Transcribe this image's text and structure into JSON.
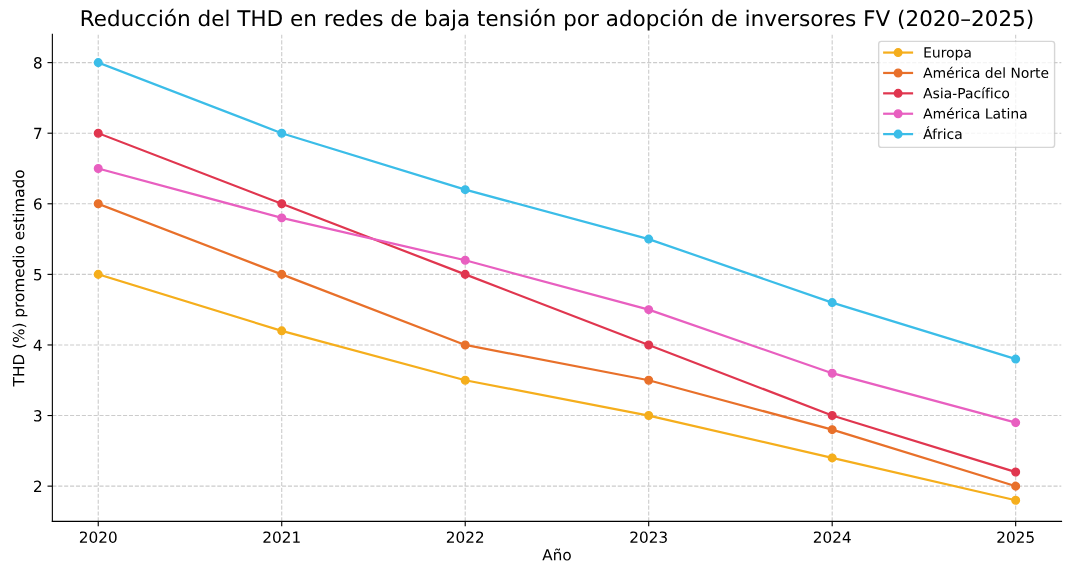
{
  "chart_data": {
    "type": "line",
    "title": "Reducción del THD en redes de baja tensión por adopción de inversores FV (2020–2025)",
    "xlabel": "Año",
    "ylabel": "THD (%) promedio estimado",
    "x": [
      2020,
      2021,
      2022,
      2023,
      2024,
      2025
    ],
    "series": [
      {
        "name": "Europa",
        "color": "#f5ae1c",
        "values": [
          5.0,
          4.2,
          3.5,
          3.0,
          2.4,
          1.8
        ]
      },
      {
        "name": "América del Norte",
        "color": "#e8702a",
        "values": [
          6.0,
          5.0,
          4.0,
          3.5,
          2.8,
          2.0
        ]
      },
      {
        "name": "Asia-Pacífico",
        "color": "#e0364f",
        "values": [
          7.0,
          6.0,
          5.0,
          4.0,
          3.0,
          2.2
        ]
      },
      {
        "name": "América Latina",
        "color": "#e85fc0",
        "values": [
          6.5,
          5.8,
          5.2,
          4.5,
          3.6,
          2.9
        ]
      },
      {
        "name": "África",
        "color": "#3bbde8",
        "values": [
          8.0,
          7.0,
          6.2,
          5.5,
          4.6,
          3.8
        ]
      }
    ],
    "xlim": [
      2019.75,
      2025.25
    ],
    "xticks": [
      2020,
      2021,
      2022,
      2023,
      2024,
      2025
    ],
    "ylim": [
      1.5,
      8.4
    ],
    "yticks": [
      2,
      3,
      4,
      5,
      6,
      7,
      8
    ],
    "grid": true,
    "legend": "top right",
    "marker": "circle",
    "line_style": "solid"
  }
}
